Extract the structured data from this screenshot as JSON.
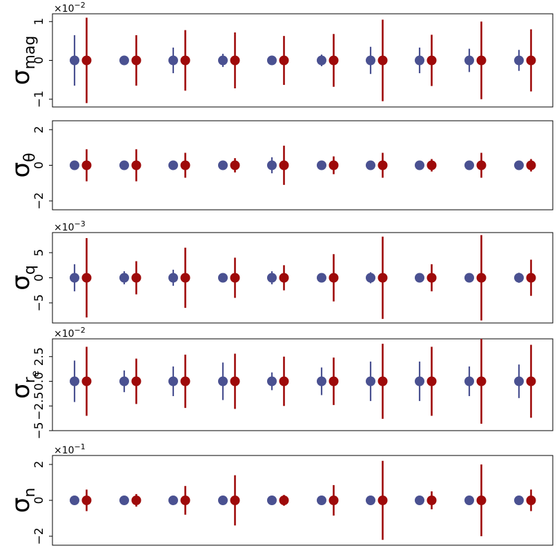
{
  "colors": {
    "model_a": "#4a5191",
    "model_b": "#9e0a0a",
    "frame": "#000000"
  },
  "chart_data": [
    {
      "type": "scatter",
      "ylabel": "σ",
      "ylabel_sub": "mag",
      "ylabel_subsub": "",
      "multiplier_base": "×10",
      "multiplier_exp": "−2",
      "ylim": [
        -1.2,
        1.2
      ],
      "yticks": [
        -1,
        0,
        1
      ],
      "ytick_labels": [
        "−1",
        "0",
        "1"
      ],
      "x": [
        1,
        2,
        3,
        4,
        5,
        6,
        7,
        8,
        9,
        10
      ],
      "grid": false,
      "series": [
        {
          "values": [
            0,
            0,
            0,
            0,
            0,
            0,
            0,
            0,
            0,
            0
          ],
          "error": [
            0.65,
            0.12,
            0.33,
            0.17,
            0.12,
            0.15,
            0.35,
            0.33,
            0.3,
            0.27
          ]
        },
        {
          "values": [
            0,
            0,
            0,
            0,
            0,
            0,
            0,
            0,
            0,
            0
          ],
          "error": [
            1.1,
            0.65,
            0.78,
            0.72,
            0.63,
            0.68,
            1.05,
            0.66,
            1.0,
            0.8
          ]
        }
      ]
    },
    {
      "type": "scatter",
      "ylabel": "σ",
      "ylabel_sub": "θ",
      "ylabel_subsub": "",
      "multiplier_base": "",
      "multiplier_exp": "",
      "ylim": [
        -2.5,
        2.5
      ],
      "yticks": [
        -2,
        0,
        2
      ],
      "ytick_labels": [
        "−2",
        "0",
        "2"
      ],
      "x": [
        1,
        2,
        3,
        4,
        5,
        6,
        7,
        8,
        9,
        10
      ],
      "grid": false,
      "series": [
        {
          "values": [
            0,
            0,
            0,
            0,
            0,
            0,
            0,
            0,
            0,
            0
          ],
          "error": [
            0,
            0.2,
            0,
            0,
            0.45,
            0,
            0,
            0,
            0,
            0
          ]
        },
        {
          "values": [
            0,
            0,
            0,
            0,
            0,
            0,
            0,
            0,
            0,
            0
          ],
          "error": [
            0.9,
            0.9,
            0.7,
            0.4,
            1.1,
            0.5,
            0.7,
            0.35,
            0.7,
            0.35
          ]
        }
      ]
    },
    {
      "type": "scatter",
      "ylabel": "σ",
      "ylabel_sub": "q",
      "ylabel_subsub": "",
      "multiplier_base": "×10",
      "multiplier_exp": "−3",
      "ylim": [
        -9,
        9
      ],
      "yticks": [
        -5,
        0,
        5
      ],
      "ytick_labels": [
        "−5",
        "0",
        "5"
      ],
      "x": [
        1,
        2,
        3,
        4,
        5,
        6,
        7,
        8,
        9,
        10
      ],
      "grid": false,
      "series": [
        {
          "values": [
            0,
            0,
            0,
            0,
            0,
            0,
            0,
            0,
            0,
            0
          ],
          "error": [
            2.7,
            1.3,
            1.6,
            0,
            1.3,
            0.7,
            1.1,
            0,
            0.8,
            1.0
          ]
        },
        {
          "values": [
            0,
            0,
            0,
            0,
            0,
            0,
            0,
            0,
            0,
            0
          ],
          "error": [
            7.9,
            3.3,
            6.0,
            4.0,
            2.5,
            4.7,
            8.2,
            2.7,
            8.5,
            3.6
          ]
        }
      ]
    },
    {
      "type": "scatter",
      "ylabel": "σ",
      "ylabel_sub": "r",
      "ylabel_subsub": "e",
      "multiplier_base": "×10",
      "multiplier_exp": "−2",
      "ylim": [
        -5,
        4.3
      ],
      "yticks": [
        -5,
        -2.5,
        0,
        2.5
      ],
      "ytick_labels": [
        "−5",
        "−2.5",
        "0.0",
        "2.5"
      ],
      "x": [
        1,
        2,
        3,
        4,
        5,
        6,
        7,
        8,
        9,
        10
      ],
      "grid": false,
      "series": [
        {
          "values": [
            0,
            0,
            0,
            0,
            0,
            0,
            0,
            0,
            0,
            0
          ],
          "error": [
            2.1,
            1.1,
            1.5,
            1.9,
            0.9,
            1.4,
            2.0,
            2.0,
            1.5,
            1.7
          ]
        },
        {
          "values": [
            0,
            0,
            0,
            0,
            0,
            0,
            0,
            0,
            0,
            0
          ],
          "error": [
            3.5,
            2.3,
            2.7,
            2.8,
            2.5,
            2.4,
            3.8,
            3.5,
            4.3,
            3.7
          ]
        }
      ]
    },
    {
      "type": "scatter",
      "ylabel": "σ",
      "ylabel_sub": "n",
      "ylabel_subsub": "",
      "multiplier_base": "×10",
      "multiplier_exp": "−1",
      "ylim": [
        -2.5,
        2.5
      ],
      "yticks": [
        -2,
        0,
        2
      ],
      "ytick_labels": [
        "−2",
        "0",
        "2"
      ],
      "x": [
        1,
        2,
        3,
        4,
        5,
        6,
        7,
        8,
        9,
        10
      ],
      "grid": false,
      "series": [
        {
          "values": [
            0,
            0,
            0,
            0,
            0,
            0,
            0,
            0,
            0,
            0
          ],
          "error": [
            0,
            0,
            0,
            0,
            0,
            0,
            0,
            0,
            0,
            0
          ]
        },
        {
          "values": [
            0,
            0,
            0,
            0,
            0,
            0,
            0,
            0,
            0,
            0
          ],
          "error": [
            0.6,
            0.35,
            0.8,
            1.4,
            0.3,
            0.85,
            2.2,
            0.5,
            2.0,
            0.6
          ]
        }
      ]
    }
  ]
}
